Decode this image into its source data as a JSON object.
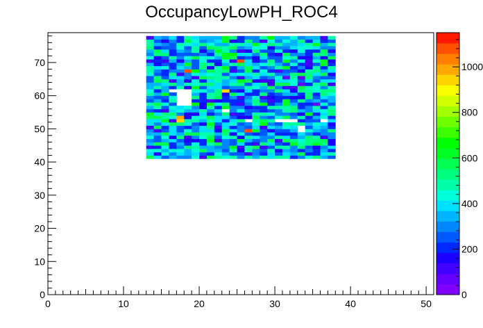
{
  "chart_data": {
    "type": "heatmap",
    "title": "OccupancyLowPH_ROC4",
    "xlabel": "",
    "ylabel": "",
    "xlim": [
      0,
      51
    ],
    "ylim": [
      0,
      79
    ],
    "xticks": [
      0,
      10,
      20,
      30,
      40,
      50
    ],
    "yticks": [
      0,
      10,
      20,
      30,
      40,
      50,
      60,
      70
    ],
    "z_range": [
      0,
      1150
    ],
    "z_ticks": [
      0,
      200,
      400,
      600,
      800,
      1000
    ],
    "filled_region": {
      "x_range": [
        13,
        38
      ],
      "y_range": [
        41,
        78
      ]
    },
    "empty_cells": [
      [
        17,
        57
      ],
      [
        18,
        57
      ],
      [
        17,
        58
      ],
      [
        18,
        58
      ],
      [
        17,
        59
      ],
      [
        18,
        59
      ],
      [
        17,
        60
      ],
      [
        18,
        60
      ],
      [
        17,
        61
      ],
      [
        18,
        61
      ],
      [
        16,
        61
      ],
      [
        30,
        52
      ],
      [
        31,
        52
      ],
      [
        32,
        52
      ],
      [
        33,
        50
      ],
      [
        33,
        49
      ],
      [
        26,
        52
      ],
      [
        23,
        55
      ],
      [
        36,
        52
      ]
    ],
    "high_cells": [
      [
        17,
        53
      ],
      [
        17,
        52
      ],
      [
        26,
        49
      ],
      [
        23,
        61
      ],
      [
        25,
        70
      ],
      [
        18,
        67
      ]
    ],
    "grid": false,
    "legend": "colorbar-right",
    "palette": [
      "#7e00ff",
      "#6300ff",
      "#4200ff",
      "#1b00ff",
      "#0028ff",
      "#0058ff",
      "#0087ff",
      "#00b5ff",
      "#00e1ff",
      "#00ffd9",
      "#00ffa8",
      "#00ff7e",
      "#00ff52",
      "#00ff21",
      "#00ff00",
      "#3cff00",
      "#70ff00",
      "#a1ff00",
      "#d1ff00",
      "#fbfe00",
      "#ffd500",
      "#ffa800",
      "#ff7f00",
      "#ff4f00",
      "#ff1900"
    ]
  }
}
